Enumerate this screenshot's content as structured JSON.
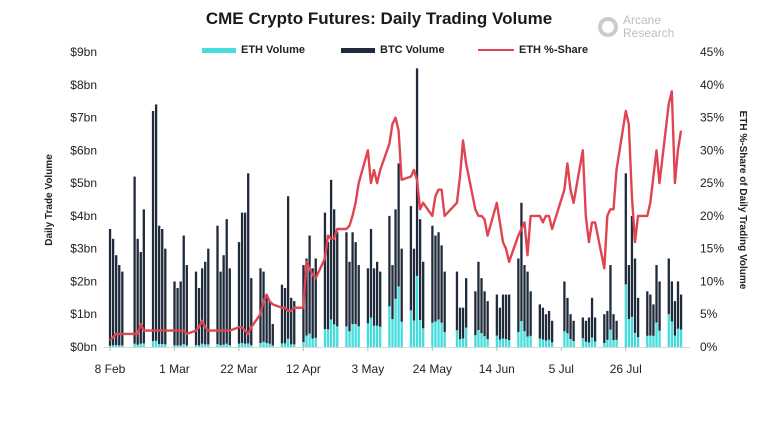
{
  "title": "CME Crypto Futures: Daily Trading Volume",
  "logo": {
    "text_line1": "Arcane",
    "text_line2": "Research"
  },
  "colors": {
    "eth": "#45dcdc",
    "btc": "#1f2a3a",
    "share": "#e04452"
  },
  "chart_data": {
    "type": "bar+line",
    "title": "CME Crypto Futures: Daily Trading Volume",
    "legend": [
      "ETH Volume",
      "BTC Volume",
      "ETH %-Share"
    ],
    "legend_position": "top",
    "ylabel": "Daily Trade Volume",
    "y2label": "ETH %-Share of Daily Trading Volume",
    "ylim": [
      0,
      9
    ],
    "y2lim": [
      0,
      45
    ],
    "y_ticks": [
      "$0bn",
      "$1bn",
      "$2bn",
      "$3bn",
      "$4bn",
      "$5bn",
      "$6bn",
      "$7bn",
      "$8bn",
      "$9bn"
    ],
    "y2_ticks": [
      "0%",
      "5%",
      "10%",
      "15%",
      "20%",
      "25%",
      "30%",
      "35%",
      "40%",
      "45%"
    ],
    "x_ticks": [
      {
        "date": "2021-02-08",
        "label": "8 Feb"
      },
      {
        "date": "2021-03-01",
        "label": "1 Mar"
      },
      {
        "date": "2021-03-22",
        "label": "22 Mar"
      },
      {
        "date": "2021-04-12",
        "label": "12 Apr"
      },
      {
        "date": "2021-05-03",
        "label": "3 May"
      },
      {
        "date": "2021-05-24",
        "label": "24 May"
      },
      {
        "date": "2021-06-14",
        "label": "14 Jun"
      },
      {
        "date": "2021-07-05",
        "label": "5 Jul"
      },
      {
        "date": "2021-07-26",
        "label": "26 Jul"
      }
    ],
    "xlim": [
      "2021-02-06",
      "2021-08-15"
    ],
    "grid": false,
    "stacked": true,
    "columns": [
      "date",
      "eth_volume_bn",
      "btc_volume_bn",
      "eth_share_pct"
    ],
    "rows": [
      [
        "2021-02-08",
        0.04,
        3.56,
        1
      ],
      [
        "2021-02-09",
        0.05,
        3.25,
        1.5
      ],
      [
        "2021-02-10",
        0.06,
        2.74,
        2
      ],
      [
        "2021-02-11",
        0.05,
        2.45,
        2
      ],
      [
        "2021-02-12",
        0.05,
        2.25,
        2
      ],
      [
        "2021-02-16",
        0.1,
        5.1,
        2
      ],
      [
        "2021-02-17",
        0.07,
        3.23,
        2
      ],
      [
        "2021-02-18",
        0.1,
        2.8,
        3.5
      ],
      [
        "2021-02-19",
        0.11,
        4.09,
        2.5
      ],
      [
        "2021-02-22",
        0.18,
        7.02,
        2.5
      ],
      [
        "2021-02-23",
        0.19,
        7.21,
        2.5
      ],
      [
        "2021-02-24",
        0.09,
        3.61,
        2.5
      ],
      [
        "2021-02-25",
        0.09,
        3.51,
        2.5
      ],
      [
        "2021-02-26",
        0.08,
        2.92,
        2.5
      ],
      [
        "2021-03-01",
        0.05,
        1.95,
        2.5
      ],
      [
        "2021-03-02",
        0.05,
        1.75,
        2.5
      ],
      [
        "2021-03-03",
        0.05,
        1.95,
        2.5
      ],
      [
        "2021-03-04",
        0.09,
        3.31,
        2.5
      ],
      [
        "2021-03-05",
        0.05,
        2.45,
        2
      ],
      [
        "2021-03-08",
        0.06,
        2.24,
        2.5
      ],
      [
        "2021-03-09",
        0.05,
        1.75,
        3
      ],
      [
        "2021-03-10",
        0.1,
        2.3,
        4
      ],
      [
        "2021-03-11",
        0.08,
        2.52,
        3
      ],
      [
        "2021-03-12",
        0.08,
        2.92,
        2.5
      ],
      [
        "2021-03-15",
        0.09,
        3.61,
        2.5
      ],
      [
        "2021-03-16",
        0.06,
        2.24,
        2.5
      ],
      [
        "2021-03-17",
        0.07,
        2.73,
        2.5
      ],
      [
        "2021-03-18",
        0.1,
        3.8,
        2.5
      ],
      [
        "2021-03-19",
        0.06,
        2.34,
        2.5
      ],
      [
        "2021-03-22",
        0.1,
        3.1,
        3
      ],
      [
        "2021-03-23",
        0.12,
        3.98,
        3
      ],
      [
        "2021-03-24",
        0.1,
        4.0,
        2.5
      ],
      [
        "2021-03-25",
        0.11,
        5.19,
        2
      ],
      [
        "2021-03-26",
        0.06,
        2.04,
        3
      ],
      [
        "2021-03-29",
        0.12,
        2.28,
        5
      ],
      [
        "2021-03-30",
        0.16,
        2.14,
        7
      ],
      [
        "2021-03-31",
        0.12,
        1.38,
        8
      ],
      [
        "2021-04-01",
        0.1,
        1.3,
        7
      ],
      [
        "2021-04-02",
        0.05,
        0.65,
        6.5
      ],
      [
        "2021-04-05",
        0.11,
        1.79,
        6
      ],
      [
        "2021-04-06",
        0.11,
        1.69,
        6
      ],
      [
        "2021-04-07",
        0.25,
        4.35,
        5.5
      ],
      [
        "2021-04-08",
        0.08,
        1.42,
        5.5
      ],
      [
        "2021-04-09",
        0.08,
        1.32,
        6
      ],
      [
        "2021-04-12",
        0.15,
        2.35,
        6
      ],
      [
        "2021-04-13",
        0.35,
        2.35,
        13
      ],
      [
        "2021-04-14",
        0.41,
        2.99,
        12
      ],
      [
        "2021-04-15",
        0.26,
        2.14,
        11
      ],
      [
        "2021-04-16",
        0.28,
        2.42,
        10.5
      ],
      [
        "2021-04-19",
        0.55,
        3.55,
        13.5
      ],
      [
        "2021-04-20",
        0.54,
        2.66,
        17
      ],
      [
        "2021-04-21",
        0.84,
        4.26,
        16.5
      ],
      [
        "2021-04-22",
        0.69,
        3.51,
        16.5
      ],
      [
        "2021-04-23",
        0.63,
        2.87,
        18
      ],
      [
        "2021-04-26",
        0.63,
        2.87,
        18
      ],
      [
        "2021-04-27",
        0.48,
        2.12,
        18.5
      ],
      [
        "2021-04-28",
        0.7,
        2.8,
        20
      ],
      [
        "2021-04-29",
        0.7,
        2.5,
        22
      ],
      [
        "2021-04-30",
        0.63,
        1.87,
        25
      ],
      [
        "2021-05-03",
        0.72,
        1.68,
        30
      ],
      [
        "2021-05-04",
        0.9,
        2.7,
        25
      ],
      [
        "2021-05-05",
        0.65,
        1.75,
        27
      ],
      [
        "2021-05-06",
        0.65,
        1.95,
        25
      ],
      [
        "2021-05-07",
        0.62,
        1.68,
        27
      ],
      [
        "2021-05-10",
        1.24,
        2.76,
        31
      ],
      [
        "2021-05-11",
        0.85,
        1.65,
        34
      ],
      [
        "2021-05-12",
        1.47,
        2.73,
        35
      ],
      [
        "2021-05-13",
        1.85,
        3.75,
        33
      ],
      [
        "2021-05-14",
        0.77,
        2.23,
        25.5
      ],
      [
        "2021-05-17",
        1.12,
        3.18,
        26
      ],
      [
        "2021-05-18",
        0.81,
        2.19,
        27
      ],
      [
        "2021-05-19",
        2.17,
        6.33,
        25.5
      ],
      [
        "2021-05-20",
        0.82,
        3.08,
        21
      ],
      [
        "2021-05-21",
        0.57,
        2.03,
        22
      ],
      [
        "2021-05-24",
        0.74,
        2.96,
        20
      ],
      [
        "2021-05-25",
        0.78,
        2.62,
        23
      ],
      [
        "2021-05-26",
        0.84,
        2.66,
        24
      ],
      [
        "2021-05-27",
        0.74,
        2.36,
        24
      ],
      [
        "2021-05-28",
        0.46,
        1.84,
        20
      ],
      [
        "2021-06-01",
        0.51,
        1.79,
        22
      ],
      [
        "2021-06-02",
        0.24,
        0.96,
        26
      ],
      [
        "2021-06-03",
        0.26,
        0.94,
        31.5
      ],
      [
        "2021-06-04",
        0.59,
        1.51,
        28
      ],
      [
        "2021-06-07",
        0.36,
        1.34,
        21
      ],
      [
        "2021-06-08",
        0.52,
        2.08,
        20
      ],
      [
        "2021-06-09",
        0.42,
        1.68,
        20
      ],
      [
        "2021-06-10",
        0.33,
        1.37,
        19.5
      ],
      [
        "2021-06-11",
        0.24,
        1.16,
        17
      ],
      [
        "2021-06-14",
        0.35,
        1.25,
        22
      ],
      [
        "2021-06-15",
        0.23,
        0.97,
        19
      ],
      [
        "2021-06-16",
        0.26,
        1.34,
        16
      ],
      [
        "2021-06-17",
        0.24,
        1.36,
        15
      ],
      [
        "2021-06-18",
        0.21,
        1.39,
        13
      ],
      [
        "2021-06-21",
        0.46,
        2.24,
        17
      ],
      [
        "2021-06-22",
        0.79,
        3.61,
        18
      ],
      [
        "2021-06-23",
        0.48,
        2.02,
        19
      ],
      [
        "2021-06-24",
        0.32,
        1.98,
        14
      ],
      [
        "2021-06-25",
        0.34,
        1.36,
        20
      ],
      [
        "2021-06-28",
        0.26,
        1.04,
        20
      ],
      [
        "2021-06-29",
        0.23,
        0.97,
        19
      ],
      [
        "2021-06-30",
        0.2,
        0.8,
        20
      ],
      [
        "2021-07-01",
        0.22,
        0.88,
        20
      ],
      [
        "2021-07-02",
        0.14,
        0.66,
        18
      ],
      [
        "2021-07-06",
        0.48,
        1.52,
        24
      ],
      [
        "2021-07-07",
        0.42,
        1.08,
        28
      ],
      [
        "2021-07-08",
        0.24,
        0.76,
        24
      ],
      [
        "2021-07-09",
        0.18,
        0.62,
        22
      ],
      [
        "2021-07-12",
        0.27,
        0.63,
        30
      ],
      [
        "2021-07-13",
        0.16,
        0.64,
        20
      ],
      [
        "2021-07-14",
        0.14,
        0.76,
        16
      ],
      [
        "2021-07-15",
        0.29,
        1.21,
        19
      ],
      [
        "2021-07-16",
        0.17,
        0.73,
        19
      ],
      [
        "2021-07-19",
        0.12,
        0.88,
        12
      ],
      [
        "2021-07-20",
        0.22,
        0.88,
        20
      ],
      [
        "2021-07-21",
        0.53,
        1.97,
        21
      ],
      [
        "2021-07-22",
        0.21,
        0.79,
        21
      ],
      [
        "2021-07-23",
        0.22,
        0.58,
        27
      ],
      [
        "2021-07-26",
        1.91,
        3.39,
        36
      ],
      [
        "2021-07-27",
        0.85,
        1.65,
        34
      ],
      [
        "2021-07-28",
        0.92,
        3.08,
        23
      ],
      [
        "2021-07-29",
        0.43,
        2.27,
        16
      ],
      [
        "2021-07-30",
        0.3,
        1.2,
        20
      ],
      [
        "2021-08-02",
        0.34,
        1.36,
        20
      ],
      [
        "2021-08-03",
        0.35,
        1.25,
        22
      ],
      [
        "2021-08-04",
        0.34,
        0.96,
        26
      ],
      [
        "2021-08-05",
        0.75,
        1.75,
        30
      ],
      [
        "2021-08-06",
        0.5,
        1.5,
        25
      ],
      [
        "2021-08-09",
        1.0,
        1.7,
        37
      ],
      [
        "2021-08-10",
        0.78,
        1.22,
        39
      ],
      [
        "2021-08-11",
        0.35,
        1.05,
        25
      ],
      [
        "2021-08-12",
        0.56,
        1.44,
        30
      ],
      [
        "2021-08-13",
        0.53,
        1.07,
        33
      ]
    ]
  }
}
